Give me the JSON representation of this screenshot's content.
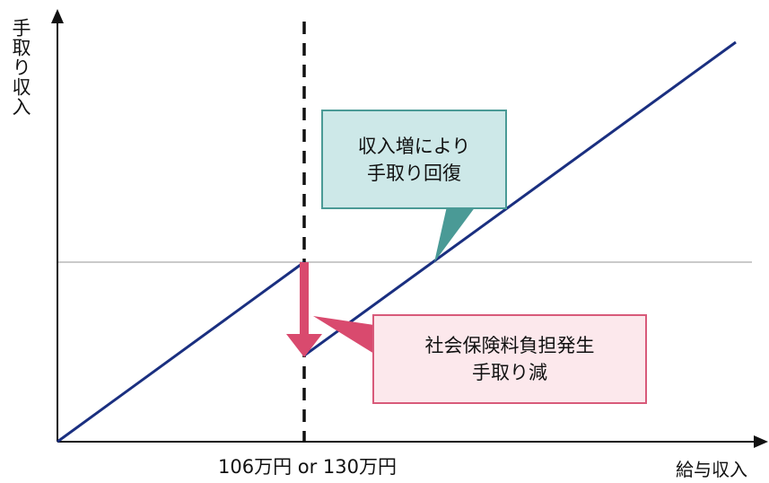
{
  "axis": {
    "y_label": "手取り収入",
    "x_label": "給与収入"
  },
  "threshold": {
    "label": "106万円 or 130万円"
  },
  "callouts": {
    "recover": {
      "line1": "収入増により",
      "line2": "手取り回復"
    },
    "burden": {
      "line1": "社会保険料負担発生",
      "line2": "手取り減"
    }
  },
  "colors": {
    "income_line": "#1a2f80",
    "drop_arrow": "#d94a6e",
    "recover_fill": "#cde8e8",
    "recover_border": "#4a9a96",
    "burden_fill": "#fce8ec",
    "burden_border": "#d85a7a",
    "axis": "#111111",
    "reference_line": "#aaaaaa"
  }
}
